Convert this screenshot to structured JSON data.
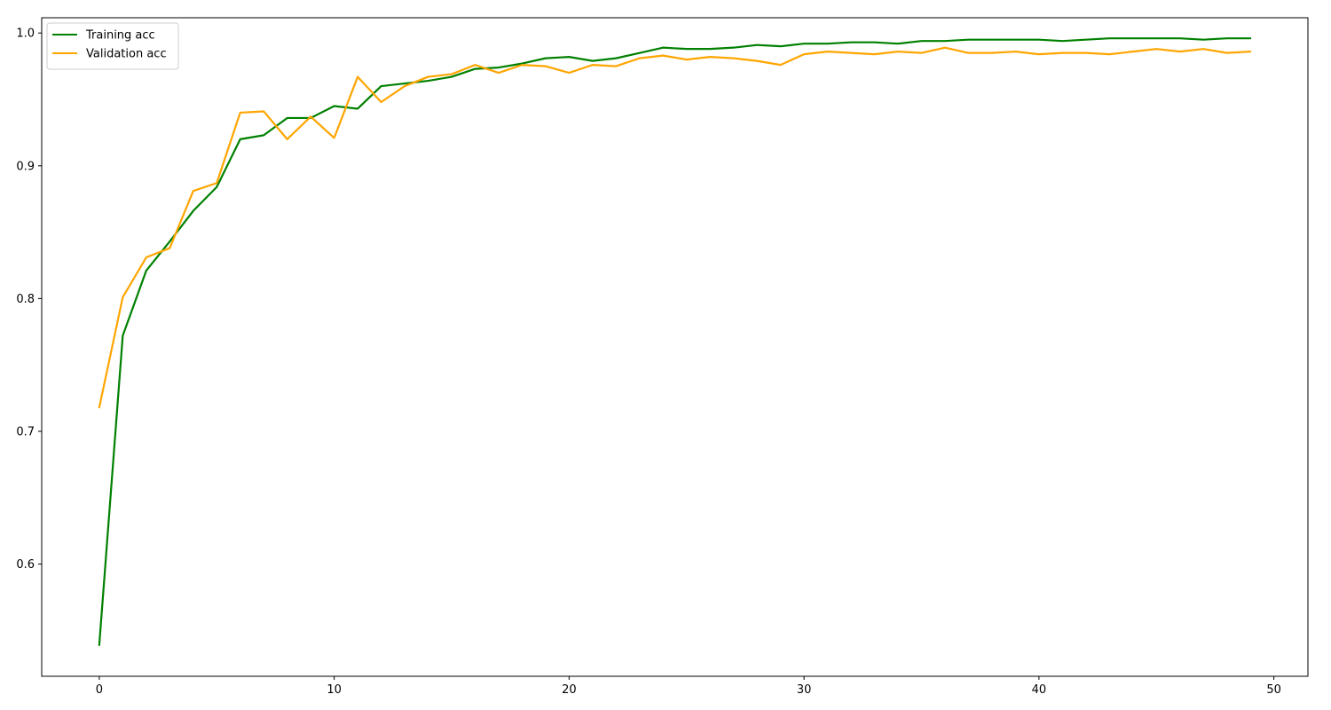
{
  "chart_data": {
    "type": "line",
    "title": "",
    "xlabel": "",
    "ylabel": "",
    "xlim": [
      -2.45,
      51.45
    ],
    "ylim": [
      0.5155,
      1.0115
    ],
    "x_ticks": [
      0,
      10,
      20,
      30,
      40,
      50
    ],
    "y_ticks": [
      0.6,
      0.7,
      0.8,
      0.9,
      1.0
    ],
    "x_tick_labels": [
      "0",
      "10",
      "20",
      "30",
      "40",
      "50"
    ],
    "y_tick_labels": [
      "0.6",
      "0.7",
      "0.8",
      "0.9",
      "1.0"
    ],
    "grid": false,
    "legend_position": "top-left",
    "x": [
      0,
      1,
      2,
      3,
      4,
      5,
      6,
      7,
      8,
      9,
      10,
      11,
      12,
      13,
      14,
      15,
      16,
      17,
      18,
      19,
      20,
      21,
      22,
      23,
      24,
      25,
      26,
      27,
      28,
      29,
      30,
      31,
      32,
      33,
      34,
      35,
      36,
      37,
      38,
      39,
      40,
      41,
      42,
      43,
      44,
      45,
      46,
      47,
      48,
      49
    ],
    "series": [
      {
        "name": "Training acc",
        "color": "#008000",
        "values": [
          0.539,
          0.772,
          0.821,
          0.843,
          0.866,
          0.884,
          0.92,
          0.923,
          0.936,
          0.936,
          0.945,
          0.943,
          0.96,
          0.962,
          0.964,
          0.967,
          0.973,
          0.974,
          0.977,
          0.981,
          0.982,
          0.979,
          0.981,
          0.985,
          0.989,
          0.988,
          0.988,
          0.989,
          0.991,
          0.99,
          0.992,
          0.992,
          0.993,
          0.993,
          0.992,
          0.994,
          0.994,
          0.995,
          0.995,
          0.995,
          0.995,
          0.994,
          0.995,
          0.996,
          0.996,
          0.996,
          0.996,
          0.995,
          0.996,
          0.996
        ]
      },
      {
        "name": "Validation acc",
        "color": "#FFA500",
        "values": [
          0.718,
          0.801,
          0.831,
          0.838,
          0.881,
          0.887,
          0.94,
          0.941,
          0.92,
          0.937,
          0.921,
          0.967,
          0.948,
          0.96,
          0.967,
          0.969,
          0.976,
          0.97,
          0.976,
          0.975,
          0.97,
          0.976,
          0.975,
          0.981,
          0.983,
          0.98,
          0.982,
          0.981,
          0.979,
          0.976,
          0.984,
          0.986,
          0.985,
          0.984,
          0.986,
          0.985,
          0.989,
          0.985,
          0.985,
          0.986,
          0.984,
          0.985,
          0.985,
          0.984,
          0.986,
          0.988,
          0.986,
          0.988,
          0.985,
          0.986
        ]
      }
    ]
  }
}
